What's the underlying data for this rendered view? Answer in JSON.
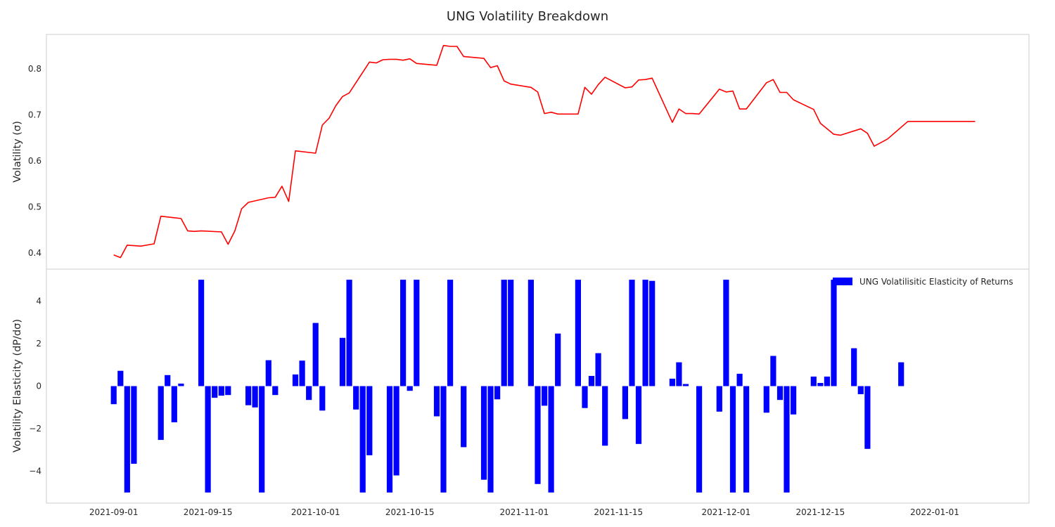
{
  "chart_data": [
    {
      "type": "line",
      "title": "UNG Volatility Breakdown",
      "xlabel": "",
      "ylabel": "Volatility (σ)",
      "ylim": [
        0.365,
        0.875
      ],
      "yticks": [
        "0.4",
        "0.5",
        "0.6",
        "0.7",
        "0.8"
      ],
      "color": "#ff0000",
      "grid": false,
      "series": [
        {
          "x": [
            "2021-09-01",
            "2021-09-02",
            "2021-09-03",
            "2021-09-04",
            "2021-09-05",
            "2021-09-07",
            "2021-09-08",
            "2021-09-11",
            "2021-09-12",
            "2021-09-13",
            "2021-09-14",
            "2021-09-17",
            "2021-09-18",
            "2021-09-19",
            "2021-09-20",
            "2021-09-21",
            "2021-09-24",
            "2021-09-25",
            "2021-09-26",
            "2021-09-27",
            "2021-09-28",
            "2021-10-01",
            "2021-10-02",
            "2021-10-03",
            "2021-10-04",
            "2021-10-05",
            "2021-10-06",
            "2021-10-09",
            "2021-10-10",
            "2021-10-11",
            "2021-10-12",
            "2021-10-13",
            "2021-10-14",
            "2021-10-15",
            "2021-10-16",
            "2021-10-19",
            "2021-10-20",
            "2021-10-21",
            "2021-10-22",
            "2021-10-23",
            "2021-10-26",
            "2021-10-27",
            "2021-10-28",
            "2021-10-29",
            "2021-10-30",
            "2021-11-02",
            "2021-11-03",
            "2021-11-04",
            "2021-11-05",
            "2021-11-06",
            "2021-11-09",
            "2021-11-10",
            "2021-11-11",
            "2021-11-12",
            "2021-11-13",
            "2021-11-16",
            "2021-11-17",
            "2021-11-18",
            "2021-11-19",
            "2021-11-20",
            "2021-11-23",
            "2021-11-24",
            "2021-11-25",
            "2021-11-26",
            "2021-11-27",
            "2021-11-30",
            "2021-12-01",
            "2021-12-02",
            "2021-12-03",
            "2021-12-04",
            "2021-12-07",
            "2021-12-08",
            "2021-12-09",
            "2021-12-10",
            "2021-12-11",
            "2021-12-14",
            "2021-12-15",
            "2021-12-16",
            "2021-12-17",
            "2021-12-18",
            "2021-12-21",
            "2021-12-22",
            "2021-12-23",
            "2021-12-24",
            "2021-12-25",
            "2021-12-28",
            "2021-12-29",
            "2021-12-30",
            "2021-12-31",
            "2022-01-01",
            "2022-01-04",
            "2022-01-05",
            "2022-01-06",
            "2022-01-07",
            "2022-01-08",
            "2022-01-11"
          ],
          "values": [
            0.396,
            0.39,
            0.417,
            0.416,
            0.415,
            0.42,
            0.48,
            0.475,
            0.448,
            0.447,
            0.448,
            0.446,
            0.419,
            0.448,
            0.496,
            0.51,
            0.52,
            0.521,
            0.545,
            0.512,
            0.622,
            0.617,
            0.678,
            0.693,
            0.72,
            0.74,
            0.748,
            0.815,
            0.813,
            0.82,
            0.821,
            0.821,
            0.819,
            0.822,
            0.812,
            0.808,
            0.851,
            0.849,
            0.849,
            0.827,
            0.823,
            0.803,
            0.807,
            0.774,
            0.767,
            0.76,
            0.75,
            0.703,
            0.706,
            0.702,
            0.702,
            0.76,
            0.745,
            0.766,
            0.782,
            0.759,
            0.761,
            0.776,
            0.777,
            0.78,
            0.684,
            0.713,
            0.703,
            0.703,
            0.702,
            0.756,
            0.75,
            0.752,
            0.713,
            0.713,
            0.77,
            0.777,
            0.749,
            0.749,
            0.733,
            0.712,
            0.682,
            0.67,
            0.658,
            0.656,
            0.67,
            0.66,
            0.632,
            0.64,
            0.648,
            0.686,
            0.686,
            0.686,
            0.686,
            0.686,
            0.686,
            0.686,
            0.686,
            0.686,
            0.686,
            0.686
          ]
        }
      ]
    },
    {
      "type": "bar",
      "xlabel": "",
      "ylabel": "Volatility Elasticity (dP/dσ)",
      "ylim": [
        -5.5,
        5.5
      ],
      "yticks": [
        "−4",
        "−2",
        "0",
        "2",
        "4"
      ],
      "xticks": [
        "2021-09-01",
        "2021-09-15",
        "2021-10-01",
        "2021-10-15",
        "2021-11-01",
        "2021-11-15",
        "2021-12-01",
        "2021-12-15",
        "2022-01-01"
      ],
      "color": "#0000ff",
      "legend": {
        "label": "UNG Volatilisitic Elasticity of Returns",
        "position": "top-right"
      },
      "grid": false,
      "series": [
        {
          "name": "UNG Volatilisitic Elasticity of Returns",
          "x": [
            "2021-09-01",
            "2021-09-02",
            "2021-09-03",
            "2021-09-04",
            "2021-09-08",
            "2021-09-09",
            "2021-09-10",
            "2021-09-11",
            "2021-09-14",
            "2021-09-15",
            "2021-09-16",
            "2021-09-17",
            "2021-09-18",
            "2021-09-21",
            "2021-09-22",
            "2021-09-23",
            "2021-09-24",
            "2021-09-25",
            "2021-09-28",
            "2021-09-29",
            "2021-09-30",
            "2021-10-01",
            "2021-10-02",
            "2021-10-05",
            "2021-10-06",
            "2021-10-07",
            "2021-10-08",
            "2021-10-09",
            "2021-10-12",
            "2021-10-13",
            "2021-10-14",
            "2021-10-15",
            "2021-10-16",
            "2021-10-19",
            "2021-10-20",
            "2021-10-21",
            "2021-10-23",
            "2021-10-26",
            "2021-10-27",
            "2021-10-28",
            "2021-10-29",
            "2021-10-30",
            "2021-11-02",
            "2021-11-03",
            "2021-11-04",
            "2021-11-05",
            "2021-11-06",
            "2021-11-09",
            "2021-11-10",
            "2021-11-11",
            "2021-11-12",
            "2021-11-13",
            "2021-11-16",
            "2021-11-17",
            "2021-11-18",
            "2021-11-19",
            "2021-11-20",
            "2021-11-23",
            "2021-11-24",
            "2021-11-25",
            "2021-11-27",
            "2021-11-30",
            "2021-12-01",
            "2021-12-02",
            "2021-12-03",
            "2021-12-04",
            "2021-12-07",
            "2021-12-08",
            "2021-12-09",
            "2021-12-10",
            "2021-12-11",
            "2021-12-14",
            "2021-12-15",
            "2021-12-16",
            "2021-12-17",
            "2021-12-20",
            "2021-12-21",
            "2021-12-22",
            "2021-12-27"
          ],
          "values": [
            -0.85,
            0.72,
            -5.0,
            -3.65,
            -2.53,
            0.52,
            -1.7,
            0.12,
            5.0,
            -5.0,
            -0.55,
            -0.45,
            -0.42,
            -0.9,
            -1.0,
            -5.0,
            1.22,
            -0.42,
            0.55,
            1.2,
            -0.65,
            2.97,
            -1.15,
            2.27,
            5.0,
            -1.1,
            -5.0,
            -3.25,
            -5.0,
            -4.2,
            5.0,
            -0.22,
            5.0,
            -1.42,
            -5.0,
            5.0,
            -2.87,
            -4.4,
            -5.0,
            -0.62,
            5.0,
            5.0,
            5.0,
            -4.6,
            -0.92,
            -5.0,
            2.47,
            5.0,
            -1.03,
            0.48,
            1.55,
            -2.8,
            -1.55,
            5.0,
            -2.72,
            5.0,
            4.95,
            0.35,
            1.12,
            0.1,
            -5.0,
            -1.2,
            5.0,
            -5.0,
            0.58,
            -5.0,
            -1.25,
            1.42,
            -0.65,
            -5.0,
            -1.33,
            0.45,
            0.15,
            0.45,
            5.0,
            1.78,
            -0.38,
            -2.95,
            1.12
          ]
        }
      ]
    }
  ]
}
